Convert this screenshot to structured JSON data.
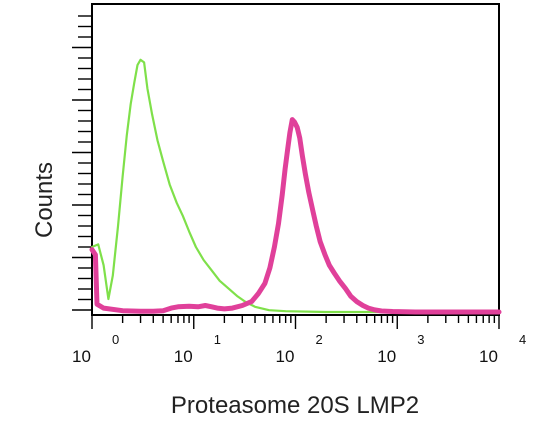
{
  "chart_data": {
    "type": "line",
    "title": "",
    "xlabel": "Proteasome 20S LMP2",
    "ylabel": "Counts",
    "x_scale": "log",
    "xlim": [
      1,
      10000
    ],
    "ylim": [
      0,
      100
    ],
    "x_ticks": [
      {
        "base": "10",
        "exp": "0",
        "value": 1
      },
      {
        "base": "10",
        "exp": "1",
        "value": 10
      },
      {
        "base": "10",
        "exp": "2",
        "value": 100
      },
      {
        "base": "10",
        "exp": "3",
        "value": 1000
      },
      {
        "base": "10",
        "exp": "4",
        "value": 10000
      }
    ],
    "grid": false,
    "legend": "none",
    "series": [
      {
        "color": "#7fe04a",
        "points": [
          [
            1,
            25
          ],
          [
            1.15,
            26
          ],
          [
            1.3,
            18
          ],
          [
            1.45,
            5
          ],
          [
            1.6,
            14
          ],
          [
            1.8,
            33
          ],
          [
            2.0,
            52
          ],
          [
            2.2,
            68
          ],
          [
            2.4,
            80
          ],
          [
            2.6,
            88
          ],
          [
            2.8,
            95
          ],
          [
            3.0,
            97
          ],
          [
            3.25,
            96
          ],
          [
            3.5,
            86
          ],
          [
            3.9,
            76
          ],
          [
            4.4,
            66
          ],
          [
            5.0,
            58
          ],
          [
            5.8,
            49
          ],
          [
            6.8,
            42
          ],
          [
            7.8,
            37
          ],
          [
            9.0,
            31
          ],
          [
            10.5,
            25
          ],
          [
            12.5,
            20
          ],
          [
            15,
            16
          ],
          [
            18,
            12
          ],
          [
            22,
            9
          ],
          [
            27,
            6
          ],
          [
            32,
            4
          ],
          [
            40,
            2
          ],
          [
            55,
            0.7
          ],
          [
            80,
            0.3
          ],
          [
            200,
            0
          ],
          [
            1000,
            0
          ],
          [
            10000,
            0
          ]
        ]
      },
      {
        "color": "#e0409a",
        "points": [
          [
            1,
            24
          ],
          [
            1.08,
            22
          ],
          [
            1.12,
            3
          ],
          [
            1.3,
            1.5
          ],
          [
            2,
            0.5
          ],
          [
            3,
            0.3
          ],
          [
            4,
            0.3
          ],
          [
            5,
            0.5
          ],
          [
            6,
            1.5
          ],
          [
            7,
            2
          ],
          [
            9,
            2.2
          ],
          [
            11,
            2
          ],
          [
            13,
            2.5
          ],
          [
            15,
            2
          ],
          [
            17,
            1.5
          ],
          [
            20,
            1.2
          ],
          [
            24,
            1.5
          ],
          [
            30,
            2.5
          ],
          [
            37,
            4
          ],
          [
            43,
            7
          ],
          [
            50,
            11
          ],
          [
            56,
            17
          ],
          [
            62,
            25
          ],
          [
            68,
            34
          ],
          [
            74,
            45
          ],
          [
            79,
            55
          ],
          [
            84,
            63
          ],
          [
            88,
            69
          ],
          [
            93,
            74
          ],
          [
            98,
            73
          ],
          [
            104,
            71
          ],
          [
            110,
            67
          ],
          [
            117,
            60
          ],
          [
            125,
            53
          ],
          [
            135,
            46
          ],
          [
            148,
            39
          ],
          [
            160,
            33
          ],
          [
            175,
            27
          ],
          [
            195,
            22
          ],
          [
            215,
            18
          ],
          [
            240,
            15
          ],
          [
            270,
            12
          ],
          [
            310,
            9
          ],
          [
            350,
            6
          ],
          [
            400,
            4
          ],
          [
            460,
            2.5
          ],
          [
            520,
            1.5
          ],
          [
            600,
            0.8
          ],
          [
            700,
            0.4
          ],
          [
            900,
            0.2
          ],
          [
            1500,
            0
          ],
          [
            10000,
            0
          ]
        ]
      }
    ]
  }
}
